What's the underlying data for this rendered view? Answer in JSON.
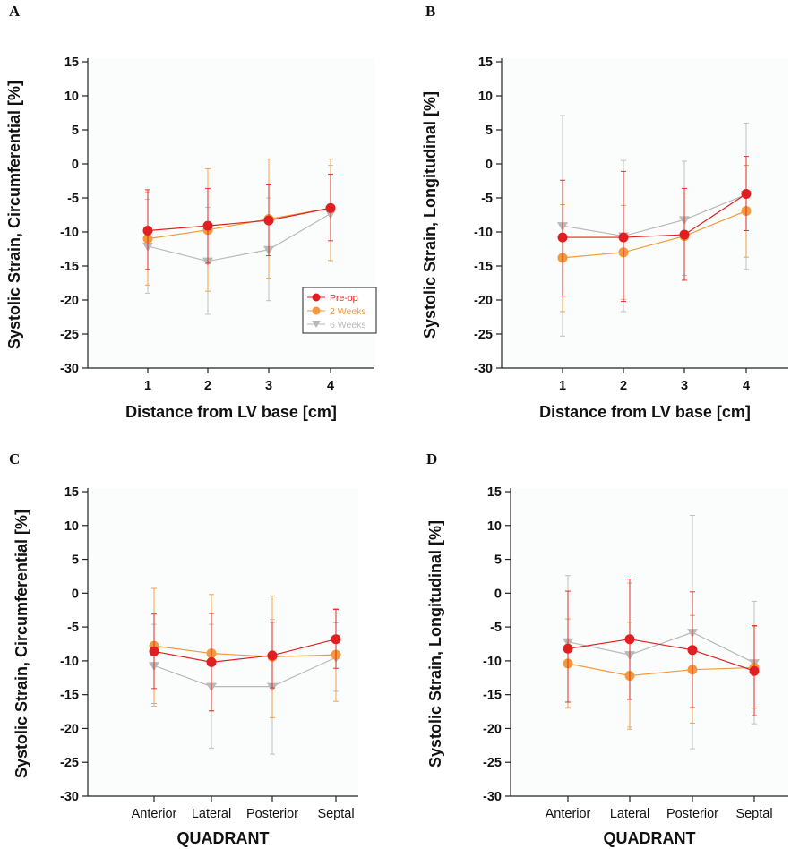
{
  "colors": {
    "pre": "#e02020",
    "w2": "#f39a3c",
    "w6": "#b9b9b9",
    "plot_bg": "#fbfdfc",
    "axis": "#222222"
  },
  "legend": [
    {
      "key": "pre",
      "label": "Pre-op",
      "marker": "circle"
    },
    {
      "key": "w2",
      "label": "2 Weeks",
      "marker": "circle"
    },
    {
      "key": "w6",
      "label": "6 Weeks",
      "marker": "triangle-down"
    }
  ],
  "chart_data": [
    {
      "panel": "A",
      "type": "line",
      "xlabel": "Distance from LV base [cm]",
      "ylabel": "Systolic Strain, Circumferential [%]",
      "categories": [
        "1",
        "2",
        "3",
        "4"
      ],
      "ylim": [
        -30,
        15
      ],
      "yticks": [
        15,
        10,
        5,
        0,
        -5,
        -10,
        -15,
        -20,
        -25,
        -30
      ],
      "legend_position": "lower-right",
      "series": [
        {
          "key": "pre",
          "name": "Pre-op",
          "values": [
            -9.8,
            -9.1,
            -8.3,
            -6.5
          ],
          "err_low": [
            -15.5,
            -14.6,
            -13.5,
            -11.3
          ],
          "err_high": [
            -3.8,
            -3.6,
            -3.1,
            -1.5
          ]
        },
        {
          "key": "w2",
          "name": "2 Weeks",
          "values": [
            -11.0,
            -9.7,
            -8.1,
            -6.5
          ],
          "err_low": [
            -17.8,
            -18.7,
            -16.8,
            -14.2
          ],
          "err_high": [
            -4.1,
            -0.7,
            0.7,
            0.7
          ]
        },
        {
          "key": "w6",
          "name": "6 Weeks",
          "values": [
            -12.1,
            -14.3,
            -12.6,
            -7.3
          ],
          "err_low": [
            -19.0,
            -22.1,
            -20.1,
            -14.4
          ],
          "err_high": [
            -5.2,
            -6.4,
            -5.0,
            -0.2
          ]
        }
      ]
    },
    {
      "panel": "B",
      "type": "line",
      "xlabel": "Distance from LV base [cm]",
      "ylabel": "Systolic Strain, Longitudinal [%]",
      "categories": [
        "1",
        "2",
        "3",
        "4"
      ],
      "ylim": [
        -30,
        15
      ],
      "yticks": [
        15,
        10,
        5,
        0,
        -5,
        -10,
        -15,
        -20,
        -25,
        -30
      ],
      "series": [
        {
          "key": "pre",
          "name": "Pre-op",
          "values": [
            -10.8,
            -10.8,
            -10.4,
            -4.4
          ],
          "err_low": [
            -19.4,
            -20.2,
            -17.1,
            -9.8
          ],
          "err_high": [
            -2.4,
            -1.1,
            -3.6,
            1.1
          ]
        },
        {
          "key": "w2",
          "name": "2 Weeks",
          "values": [
            -13.8,
            -13.0,
            -10.6,
            -6.9
          ],
          "err_low": [
            -21.7,
            -19.9,
            -16.9,
            -13.7
          ],
          "err_high": [
            -6.0,
            -6.1,
            -4.3,
            -0.2
          ]
        },
        {
          "key": "w6",
          "name": "6 Weeks",
          "values": [
            -9.1,
            -10.6,
            -8.2,
            -4.5
          ],
          "err_low": [
            -25.3,
            -21.7,
            -16.4,
            -15.5
          ],
          "err_high": [
            7.1,
            0.5,
            0.4,
            6.0
          ]
        }
      ]
    },
    {
      "panel": "C",
      "type": "line",
      "xlabel": "QUADRANT",
      "ylabel": "Systolic Strain, Circumferential [%]",
      "categories": [
        "Anterior",
        "Lateral",
        "Posterior",
        "Septal"
      ],
      "ylim": [
        -30,
        15
      ],
      "yticks": [
        15,
        10,
        5,
        0,
        -5,
        -10,
        -15,
        -20,
        -25,
        -30
      ],
      "series": [
        {
          "key": "pre",
          "name": "Pre-op",
          "values": [
            -8.6,
            -10.2,
            -9.2,
            -6.8
          ],
          "err_low": [
            -14.1,
            -17.4,
            -14.0,
            -11.1
          ],
          "err_high": [
            -3.1,
            -3.0,
            -4.3,
            -2.4
          ]
        },
        {
          "key": "w2",
          "name": "2 Weeks",
          "values": [
            -7.8,
            -8.9,
            -9.4,
            -9.1
          ],
          "err_low": [
            -16.3,
            -17.4,
            -18.4,
            -16.0
          ],
          "err_high": [
            0.7,
            -0.2,
            -0.4,
            -2.3
          ]
        },
        {
          "key": "w6",
          "name": "6 Weeks",
          "values": [
            -10.7,
            -13.8,
            -13.8,
            -9.5
          ],
          "err_low": [
            -16.7,
            -22.9,
            -23.8,
            -14.5
          ],
          "err_high": [
            -4.6,
            -4.6,
            -3.9,
            -4.4
          ]
        }
      ]
    },
    {
      "panel": "D",
      "type": "line",
      "xlabel": "QUADRANT",
      "ylabel": "Systolic Strain, Longitudinal [%]",
      "categories": [
        "Anterior",
        "Lateral",
        "Posterior",
        "Septal"
      ],
      "ylim": [
        -30,
        15
      ],
      "yticks": [
        15,
        10,
        5,
        0,
        -5,
        -10,
        -15,
        -20,
        -25,
        -30
      ],
      "series": [
        {
          "key": "pre",
          "name": "Pre-op",
          "values": [
            -8.2,
            -6.8,
            -8.4,
            -11.5
          ],
          "err_low": [
            -16.1,
            -15.7,
            -16.9,
            -18.1
          ],
          "err_high": [
            0.3,
            2.1,
            0.2,
            -4.8
          ]
        },
        {
          "key": "w2",
          "name": "2 Weeks",
          "values": [
            -10.4,
            -12.2,
            -11.3,
            -11.0
          ],
          "err_low": [
            -16.9,
            -20.1,
            -19.2,
            -17.0
          ],
          "err_high": [
            -3.8,
            -4.3,
            -3.3,
            -4.9
          ]
        },
        {
          "key": "w6",
          "name": "6 Weeks",
          "values": [
            -7.2,
            -9.1,
            -5.8,
            -10.3
          ],
          "err_low": [
            -17.0,
            -19.8,
            -23.0,
            -19.3
          ],
          "err_high": [
            2.6,
            1.5,
            11.5,
            -1.2
          ]
        }
      ]
    }
  ]
}
